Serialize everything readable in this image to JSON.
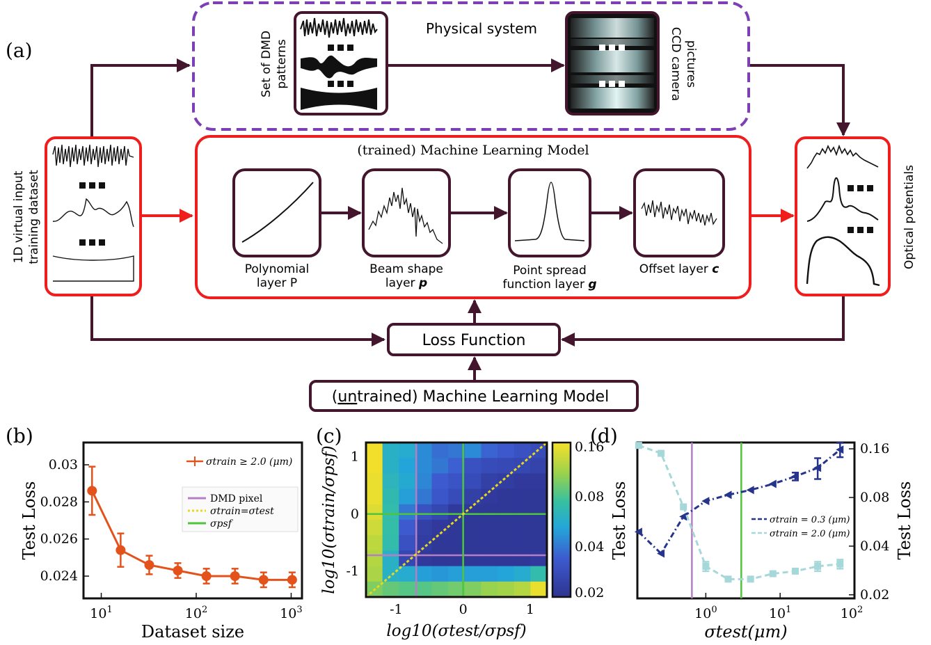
{
  "panel_labels": {
    "a": "(a)",
    "b": "(b)",
    "c": "(c)",
    "d": "(d)"
  },
  "physical": {
    "title": "Physical system",
    "dmd_label_1": "Set of DMD",
    "dmd_label_2": "patterns",
    "ccd_label_1": "CCD camera",
    "ccd_label_2": "pictures"
  },
  "input": {
    "label_1": "1D virtual input",
    "label_2": "training dataset"
  },
  "model": {
    "title": "(trained) Machine Learning Model",
    "layers": [
      {
        "line1": "Polynomial",
        "line2": "layer P"
      },
      {
        "line1": "Beam shape",
        "line2": "layer",
        "symbol": "p"
      },
      {
        "line1": "Point spread",
        "line2": "function layer",
        "symbol": "g"
      },
      {
        "line1": "Offset layer",
        "symbol": "c"
      }
    ]
  },
  "output": {
    "label": "Optical potentials"
  },
  "loss": {
    "label": "Loss Function"
  },
  "untrained": {
    "prefix": "(",
    "underlined": "un",
    "rest": "trained) Machine Learning Model"
  },
  "colors": {
    "dark": "#44162e",
    "red": "#f01d1d",
    "purple": "#7d3fb5",
    "orange": "#e4521b",
    "navy": "#26348c",
    "teal": "#a6d8da",
    "magenta": "#b57fc4",
    "green": "#4fc53b"
  },
  "chart_data": [
    {
      "panel": "b",
      "type": "line",
      "xscale": "log",
      "xlabel": "Dataset size",
      "ylabel": "Test Loss",
      "xlim": [
        6.5,
        1300
      ],
      "ylim": [
        0.0228,
        0.0312
      ],
      "xticks": [
        "10^1",
        "10^2",
        "10^3"
      ],
      "yticks": [
        "0.024",
        "0.026",
        "0.028",
        "0.03"
      ],
      "series": [
        {
          "name": "σtrain ≥ 2.0 (μm)",
          "x": [
            8,
            16,
            32,
            64,
            128,
            256,
            512,
            1024
          ],
          "y": [
            0.0286,
            0.0254,
            0.0246,
            0.0243,
            0.024,
            0.024,
            0.0238,
            0.0238
          ],
          "err": [
            0.0013,
            0.0009,
            0.0005,
            0.0004,
            0.0004,
            0.0004,
            0.0004,
            0.0004
          ]
        }
      ],
      "legend_extra": [
        "DMD pixel",
        "σtrain=σtest",
        "σpsf"
      ],
      "legend": "top-right"
    },
    {
      "panel": "c",
      "type": "heatmap",
      "xlabel": "log10(σtest/σpsf)",
      "ylabel": "log10(σtrain/σpsf)",
      "xlim": [
        -1.45,
        1.25
      ],
      "ylim": [
        -1.45,
        1.25
      ],
      "xticks": [
        "-1",
        "0",
        "1"
      ],
      "yticks": [
        "-1",
        "0",
        "1"
      ],
      "colorbar_ticks": [
        "0.02",
        "0.04",
        "0.08",
        "0.16"
      ],
      "colorbar_range": [
        0.02,
        0.17
      ],
      "rows_top_to_bottom": [
        [
          0.165,
          0.06,
          0.056,
          0.045,
          0.038,
          0.04,
          0.045,
          0.036,
          0.033,
          0.03,
          0.028
        ],
        [
          0.165,
          0.06,
          0.052,
          0.045,
          0.04,
          0.035,
          0.03,
          0.028,
          0.027,
          0.026,
          0.025
        ],
        [
          0.16,
          0.064,
          0.055,
          0.044,
          0.034,
          0.031,
          0.028,
          0.024,
          0.023,
          0.022,
          0.022
        ],
        [
          0.16,
          0.068,
          0.05,
          0.04,
          0.032,
          0.028,
          0.024,
          0.022,
          0.021,
          0.021,
          0.021
        ],
        [
          0.15,
          0.07,
          0.04,
          0.03,
          0.026,
          0.022,
          0.021,
          0.021,
          0.021,
          0.021,
          0.021
        ],
        [
          0.14,
          0.072,
          0.034,
          0.024,
          0.022,
          0.021,
          0.021,
          0.021,
          0.021,
          0.021,
          0.021
        ],
        [
          0.13,
          0.07,
          0.03,
          0.023,
          0.021,
          0.021,
          0.021,
          0.021,
          0.021,
          0.021,
          0.021
        ],
        [
          0.125,
          0.06,
          0.026,
          0.022,
          0.021,
          0.021,
          0.021,
          0.021,
          0.021,
          0.021,
          0.022
        ],
        [
          0.12,
          0.06,
          0.056,
          0.05,
          0.048,
          0.05,
          0.05,
          0.05,
          0.052,
          0.056,
          0.07
        ],
        [
          0.1,
          0.09,
          0.085,
          0.085,
          0.09,
          0.095,
          0.1,
          0.11,
          0.115,
          0.125,
          0.16
        ]
      ]
    },
    {
      "panel": "d",
      "type": "line",
      "xscale": "log",
      "xlabel": "σtest(μm)",
      "ylabel": "Test Loss",
      "ylabel_right": "Test Loss",
      "xlim": [
        0.12,
        100
      ],
      "ylim": [
        0.019,
        0.175
      ],
      "xticks": [
        "10^0",
        "10^1",
        "10^2"
      ],
      "yticks": [
        "0.02",
        "0.04",
        "0.08",
        "0.16"
      ],
      "vlines": {
        "dmd_pixel": 0.65,
        "psf": 3.0
      },
      "series": [
        {
          "name": "σtrain = 0.3 (μm)",
          "x": [
            0.125,
            0.25,
            0.5,
            1,
            2,
            4,
            8,
            16,
            32,
            64
          ],
          "y": [
            0.049,
            0.036,
            0.061,
            0.076,
            0.083,
            0.089,
            0.097,
            0.108,
            0.122,
            0.158
          ],
          "err": [
            0,
            0,
            0,
            0,
            0,
            0,
            0,
            0.006,
            0.018,
            0.016
          ]
        },
        {
          "name": "σtrain = 2.0 (μm)",
          "x": [
            0.125,
            0.25,
            0.5,
            1,
            2,
            4,
            8,
            16,
            32,
            64
          ],
          "y": [
            0.168,
            0.15,
            0.07,
            0.03,
            0.025,
            0.025,
            0.027,
            0.028,
            0.03,
            0.031
          ],
          "err": [
            0,
            0,
            0,
            0.002,
            0,
            0,
            0,
            0,
            0.002,
            0.002
          ]
        }
      ],
      "legend": "right-middle"
    }
  ]
}
